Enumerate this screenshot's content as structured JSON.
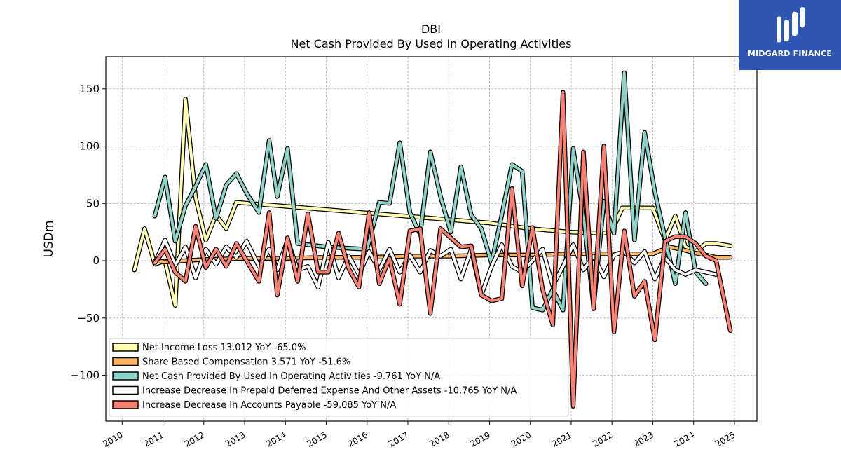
{
  "chart_data": {
    "type": "line",
    "title": "DBI",
    "subtitle": "Net Cash Provided By Used In Operating Activities",
    "xlabel": "",
    "ylabel": "USDm",
    "xlim": [
      2009.6,
      2025.55
    ],
    "ylim": [
      -140,
      178
    ],
    "x_ticks": [
      "2010",
      "2011",
      "2012",
      "2013",
      "2014",
      "2015",
      "2016",
      "2017",
      "2018",
      "2019",
      "2020",
      "2021",
      "2022",
      "2023",
      "2024",
      "2025"
    ],
    "y_ticks": [
      150,
      100,
      50,
      0,
      -50,
      -100
    ],
    "y_tick_labels": [
      "150",
      "100",
      "50",
      "0",
      "−50",
      "−100"
    ],
    "grid": true,
    "legend_position": "lower-left",
    "series": [
      {
        "name": "Net Income Loss",
        "legend_label": "Net Income Loss  13.012 YoY -65.0%",
        "color": "#ffffb3",
        "points": [
          [
            2010.3,
            -8
          ],
          [
            2010.55,
            28
          ],
          [
            2010.8,
            -3
          ],
          [
            2011.05,
            0
          ],
          [
            2011.3,
            -39
          ],
          [
            2011.55,
            141
          ],
          [
            2011.8,
            55
          ],
          [
            2012.05,
            18
          ],
          [
            2012.3,
            40
          ],
          [
            2012.55,
            28
          ],
          [
            2012.8,
            51
          ],
          [
            2019.0,
            33
          ],
          [
            2020.0,
            28
          ],
          [
            2021.0,
            25
          ],
          [
            2021.8,
            24
          ],
          [
            2022.0,
            26
          ],
          [
            2022.25,
            46
          ],
          [
            2023.0,
            46
          ],
          [
            2023.3,
            18
          ],
          [
            2023.55,
            39
          ],
          [
            2023.8,
            12
          ],
          [
            2024.05,
            8
          ],
          [
            2024.3,
            15
          ],
          [
            2024.55,
            15
          ],
          [
            2024.9,
            13
          ]
        ]
      },
      {
        "name": "Share Based Compensation",
        "legend_label": "Share Based Compensation  3.571 YoY -51.6%",
        "color": "#fdb462",
        "points": [
          [
            2010.8,
            0
          ],
          [
            2011.05,
            -1
          ],
          [
            2012.0,
            1
          ],
          [
            2013.0,
            2
          ],
          [
            2014.0,
            2
          ],
          [
            2015.0,
            3
          ],
          [
            2016.0,
            3
          ],
          [
            2017.0,
            4
          ],
          [
            2018.0,
            4
          ],
          [
            2019.0,
            5
          ],
          [
            2020.0,
            5
          ],
          [
            2021.0,
            6
          ],
          [
            2022.0,
            6
          ],
          [
            2023.0,
            6
          ],
          [
            2023.4,
            12
          ],
          [
            2023.7,
            10
          ],
          [
            2024.0,
            7
          ],
          [
            2024.3,
            5
          ],
          [
            2024.55,
            3
          ],
          [
            2024.9,
            3
          ]
        ]
      },
      {
        "name": "Net Cash Provided By Used In Operating Activities",
        "legend_label": "Net Cash Provided By Used In Operating Activities  -9.761 YoY N/A",
        "color": "#8dd3c7",
        "points": [
          [
            2010.8,
            39
          ],
          [
            2011.05,
            73
          ],
          [
            2011.3,
            17
          ],
          [
            2011.55,
            48
          ],
          [
            2011.8,
            65
          ],
          [
            2012.05,
            84
          ],
          [
            2012.3,
            37
          ],
          [
            2012.55,
            66
          ],
          [
            2012.8,
            76
          ],
          [
            2013.05,
            59
          ],
          [
            2013.35,
            42
          ],
          [
            2013.6,
            105
          ],
          [
            2013.8,
            56
          ],
          [
            2014.05,
            98
          ],
          [
            2014.3,
            15
          ],
          [
            2015.0,
            12
          ],
          [
            2015.5,
            11
          ],
          [
            2016.0,
            10
          ],
          [
            2016.3,
            51
          ],
          [
            2016.55,
            50
          ],
          [
            2016.8,
            103
          ],
          [
            2017.05,
            42
          ],
          [
            2017.3,
            23
          ],
          [
            2017.55,
            95
          ],
          [
            2017.8,
            56
          ],
          [
            2018.05,
            25
          ],
          [
            2018.3,
            82
          ],
          [
            2018.55,
            40
          ],
          [
            2018.8,
            28
          ],
          [
            2019.05,
            -2
          ],
          [
            2019.3,
            40
          ],
          [
            2019.55,
            84
          ],
          [
            2019.8,
            78
          ],
          [
            2020.05,
            -41
          ],
          [
            2020.3,
            -43
          ],
          [
            2020.55,
            -25
          ],
          [
            2020.8,
            -43
          ],
          [
            2021.05,
            98
          ],
          [
            2021.3,
            40
          ],
          [
            2021.55,
            -40
          ],
          [
            2021.8,
            52
          ],
          [
            2022.05,
            24
          ],
          [
            2022.3,
            164
          ],
          [
            2022.55,
            18
          ],
          [
            2022.8,
            112
          ],
          [
            2023.05,
            60
          ],
          [
            2023.3,
            20
          ],
          [
            2023.55,
            -20
          ],
          [
            2023.8,
            42
          ],
          [
            2024.05,
            -10
          ],
          [
            2024.3,
            -20
          ]
        ]
      },
      {
        "name": "Increase Decrease In Prepaid Deferred Expense And Other Assets",
        "legend_label": "Increase Decrease In Prepaid Deferred Expense And Other Assets  -10.765 YoY N/A",
        "color": "#ffffff",
        "points": [
          [
            2010.8,
            -2
          ],
          [
            2011.05,
            18
          ],
          [
            2011.3,
            -4
          ],
          [
            2011.55,
            12
          ],
          [
            2011.8,
            -15
          ],
          [
            2012.05,
            10
          ],
          [
            2012.3,
            -3
          ],
          [
            2012.55,
            12
          ],
          [
            2012.8,
            3
          ],
          [
            2013.05,
            17
          ],
          [
            2013.35,
            -5
          ],
          [
            2013.6,
            10
          ],
          [
            2013.8,
            -8
          ],
          [
            2014.05,
            18
          ],
          [
            2014.3,
            -8
          ],
          [
            2014.55,
            -5
          ],
          [
            2014.8,
            -23
          ],
          [
            2015.05,
            16
          ],
          [
            2015.3,
            -15
          ],
          [
            2015.55,
            4
          ],
          [
            2015.8,
            -12
          ],
          [
            2016.05,
            8
          ],
          [
            2016.3,
            -8
          ],
          [
            2016.55,
            10
          ],
          [
            2016.8,
            -10
          ],
          [
            2017.05,
            5
          ],
          [
            2017.3,
            -10
          ],
          [
            2017.55,
            9
          ],
          [
            2017.8,
            4
          ],
          [
            2018.05,
            10
          ],
          [
            2018.3,
            -16
          ],
          [
            2018.55,
            10
          ],
          [
            2018.8,
            -30
          ],
          [
            2019.05,
            -5
          ],
          [
            2019.3,
            14
          ],
          [
            2019.55,
            -5
          ],
          [
            2019.8,
            -10
          ],
          [
            2020.05,
            0
          ],
          [
            2020.3,
            10
          ],
          [
            2020.55,
            -22
          ],
          [
            2020.8,
            -5
          ],
          [
            2021.05,
            14
          ],
          [
            2021.3,
            -8
          ],
          [
            2021.55,
            4
          ],
          [
            2021.8,
            -14
          ],
          [
            2022.05,
            5
          ],
          [
            2022.3,
            8
          ],
          [
            2022.55,
            -2
          ],
          [
            2022.8,
            8
          ],
          [
            2023.05,
            -16
          ],
          [
            2023.3,
            3
          ],
          [
            2023.55,
            -8
          ],
          [
            2023.8,
            -12
          ],
          [
            2024.05,
            -8
          ],
          [
            2024.3,
            -10
          ],
          [
            2024.55,
            -12
          ]
        ]
      },
      {
        "name": "Increase Decrease In Accounts Payable",
        "legend_label": "Increase Decrease In Accounts Payable  -59.085 YoY N/A",
        "color": "#fb8072",
        "points": [
          [
            2010.8,
            -2
          ],
          [
            2011.05,
            10
          ],
          [
            2011.3,
            -10
          ],
          [
            2011.55,
            -18
          ],
          [
            2011.8,
            30
          ],
          [
            2012.05,
            -6
          ],
          [
            2012.3,
            10
          ],
          [
            2012.55,
            -5
          ],
          [
            2012.8,
            15
          ],
          [
            2013.05,
            0
          ],
          [
            2013.35,
            -18
          ],
          [
            2013.6,
            42
          ],
          [
            2013.8,
            -30
          ],
          [
            2014.05,
            20
          ],
          [
            2014.3,
            -18
          ],
          [
            2014.55,
            41
          ],
          [
            2014.8,
            -10
          ],
          [
            2015.05,
            -10
          ],
          [
            2015.3,
            24
          ],
          [
            2015.55,
            -7
          ],
          [
            2015.8,
            -23
          ],
          [
            2016.05,
            42
          ],
          [
            2016.3,
            -20
          ],
          [
            2016.55,
            2
          ],
          [
            2016.8,
            -38
          ],
          [
            2017.05,
            26
          ],
          [
            2017.3,
            28
          ],
          [
            2017.55,
            -46
          ],
          [
            2017.8,
            28
          ],
          [
            2018.05,
            20
          ],
          [
            2018.3,
            12
          ],
          [
            2018.55,
            13
          ],
          [
            2018.8,
            -30
          ],
          [
            2019.05,
            -35
          ],
          [
            2019.3,
            -33
          ],
          [
            2019.55,
            63
          ],
          [
            2019.8,
            -22
          ],
          [
            2020.05,
            29
          ],
          [
            2020.3,
            -25
          ],
          [
            2020.55,
            -56
          ],
          [
            2020.8,
            147
          ],
          [
            2021.05,
            -127
          ],
          [
            2021.3,
            95
          ],
          [
            2021.55,
            -42
          ],
          [
            2021.8,
            100
          ],
          [
            2022.05,
            -62
          ],
          [
            2022.3,
            26
          ],
          [
            2022.55,
            -31
          ],
          [
            2022.8,
            -18
          ],
          [
            2023.05,
            -69
          ],
          [
            2023.3,
            17
          ],
          [
            2023.55,
            21
          ],
          [
            2023.8,
            21
          ],
          [
            2024.05,
            15
          ],
          [
            2024.3,
            4
          ],
          [
            2024.55,
            0
          ],
          [
            2024.9,
            -61
          ]
        ]
      }
    ]
  },
  "brand": {
    "name": "MIDGARD FINANCE",
    "background": "#2f56b0"
  }
}
